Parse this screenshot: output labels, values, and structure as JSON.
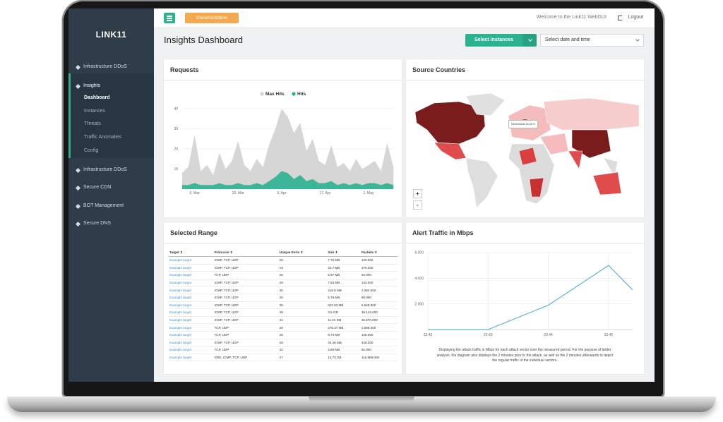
{
  "brand": "LINK11",
  "sidebar": {
    "items": [
      {
        "label": "Infrastructure DDoS"
      },
      {
        "label": "Insights",
        "children": [
          "Dashboard",
          "Instances",
          "Threats",
          "Traffic Anomalies",
          "Config"
        ]
      },
      {
        "label": "Infrastructure DDoS"
      },
      {
        "label": "Secure CDN"
      },
      {
        "label": "BOT Management"
      },
      {
        "label": "Secure DNS"
      }
    ]
  },
  "topbar": {
    "documentation": "Documentation",
    "welcome": "Welcome to the Link11 WebGUI",
    "logout": "Logout"
  },
  "header": {
    "title": "Insights Dashboard",
    "select_instances": "Select Instances",
    "date_picker": "Select date and time"
  },
  "map": {
    "title": "Source Countries",
    "tooltip": "Netherlands 54,25 %",
    "zoom_in": "+",
    "zoom_out": "-"
  },
  "selected_range": {
    "title": "Selected Range",
    "columns": [
      "Target ⇕",
      "Protocols ⇕",
      "Unique Ports ⇕",
      "Size ⇕",
      "Packets ⇕"
    ],
    "rows": [
      [
        "Example target",
        "ICMP, TCP, UDP",
        "25",
        "7.75 MB",
        "120.000"
      ],
      [
        "Example target",
        "ICMP, TCP, UDP",
        "19",
        "44.7 MB",
        "378.000"
      ],
      [
        "Example target",
        "TCP, UDP",
        "25",
        "5.97 MB",
        "94.000"
      ],
      [
        "Example target",
        "ICMP, TCP, UDP",
        "28",
        "7.53 MB",
        "134.000"
      ],
      [
        "Example target",
        "ICMP, TCP, UDP",
        "30",
        "215.8 MB",
        "2.084.000"
      ],
      [
        "Example target",
        "ICMP, TCP, UDP",
        "26",
        "5.78 MB",
        "80.000"
      ],
      [
        "Example target",
        "ICMP, TCP, UDP",
        "39",
        "643.93 MB",
        "5.648.000"
      ],
      [
        "Example target",
        "ICMP, TCP, UDP",
        "48",
        "3.9 GB",
        "38.142.000"
      ],
      [
        "Example target",
        "ICMP, TCP, UDP",
        "44",
        "11.21 GB",
        "36.570.000"
      ],
      [
        "Example target",
        "TCP, UDP",
        "29",
        "276.37 MB",
        "2.586.000"
      ],
      [
        "Example target",
        "TCP, UDP",
        "25",
        "8.74 MB",
        "126.000"
      ],
      [
        "Example target",
        "ICMP, TCP, UDP",
        "29",
        "32.06 MB",
        "428.000"
      ],
      [
        "Example target",
        "TCP, UDP",
        "32",
        "4.89 MB",
        "82.000"
      ],
      [
        "Example target",
        "GRE, ICMP, TCP, UDP",
        "27",
        "12.73 GB",
        "116.986.000"
      ]
    ]
  },
  "chart_data": [
    {
      "type": "area",
      "title": "Requests",
      "categories": [
        null,
        null,
        "6. Mar",
        null,
        null,
        null,
        null,
        null,
        null,
        "20. Mar",
        null,
        null,
        null,
        null,
        null,
        null,
        "3. Apr",
        null,
        null,
        null,
        null,
        null,
        null,
        "17. Apr",
        null,
        null,
        null,
        null,
        null,
        null,
        "1. May",
        null,
        null,
        null,
        null
      ],
      "series": [
        {
          "name": "Max Hits",
          "color": "#d6d6d6",
          "values": [
            8,
            11,
            27,
            9,
            12,
            7,
            18,
            10,
            14,
            24,
            12,
            9,
            15,
            11,
            22,
            30,
            40,
            36,
            28,
            33,
            19,
            25,
            14,
            12,
            22,
            11,
            13,
            9,
            15,
            10,
            12,
            14,
            9,
            23,
            11
          ]
        },
        {
          "name": "Hits",
          "color": "#2bb38f",
          "values": [
            2,
            2,
            3,
            2,
            2,
            2,
            3,
            2,
            2,
            3,
            2,
            2,
            3,
            2,
            4,
            6,
            9,
            8,
            5,
            7,
            4,
            5,
            3,
            3,
            4,
            2,
            3,
            2,
            3,
            2,
            3,
            3,
            2,
            3,
            2
          ]
        }
      ],
      "ylim": [
        0,
        40
      ],
      "yticks": [
        10,
        20,
        30,
        40
      ],
      "grid": true
    },
    {
      "type": "line",
      "title": "Alert Traffic in Mbps",
      "x": [
        0,
        1,
        2,
        3,
        3.4
      ],
      "values": [
        0,
        0,
        1900,
        5000,
        3100
      ],
      "color": "#5ab4d0",
      "xlim": [
        0,
        3.4
      ],
      "xticks": [
        {
          "value": 0,
          "label": "23:42"
        },
        {
          "value": 1,
          "label": "23:43"
        },
        {
          "value": 2,
          "label": "23:44"
        },
        {
          "value": 3,
          "label": "23:45"
        }
      ],
      "ylim": [
        0,
        6000
      ],
      "yticks": [
        {
          "value": 2000,
          "label": "2.000"
        },
        {
          "value": 4000,
          "label": "4.000"
        },
        {
          "value": 6000,
          "label": "6.000"
        }
      ],
      "grid": true,
      "caption": "Displaying the attack traffic in Mbps for each attack vector over the measured period. For the purpose of better analysis, the diagram also displays the 2 minutes prior to the attack, as well as the 2 minutes afterwards to depict the regular traffic of the individual vectors."
    }
  ]
}
